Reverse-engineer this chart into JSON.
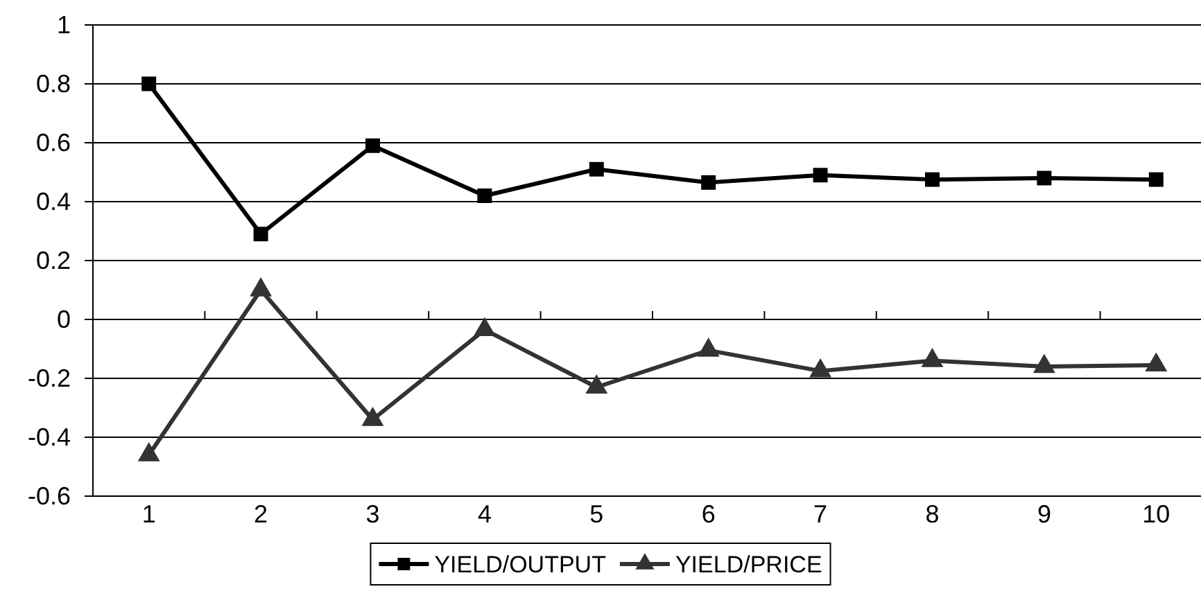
{
  "chart_data": {
    "type": "line",
    "categories": [
      "1",
      "2",
      "3",
      "4",
      "5",
      "6",
      "7",
      "8",
      "9",
      "10"
    ],
    "series": [
      {
        "name": "YIELD/OUTPUT",
        "color": "#000000",
        "marker": "square",
        "values": [
          0.8,
          0.29,
          0.59,
          0.42,
          0.51,
          0.465,
          0.49,
          0.475,
          0.48,
          0.475
        ]
      },
      {
        "name": "YIELD/PRICE",
        "color": "#333333",
        "marker": "triangle",
        "values": [
          -0.46,
          0.1,
          -0.34,
          -0.035,
          -0.23,
          -0.105,
          -0.175,
          -0.14,
          -0.16,
          -0.155
        ]
      }
    ],
    "ylim": [
      -0.6,
      1
    ],
    "yticks": [
      -0.6,
      -0.4,
      -0.2,
      0,
      0.2,
      0.4,
      0.6,
      0.8,
      1
    ],
    "grid": "y",
    "legend": "bottom"
  }
}
